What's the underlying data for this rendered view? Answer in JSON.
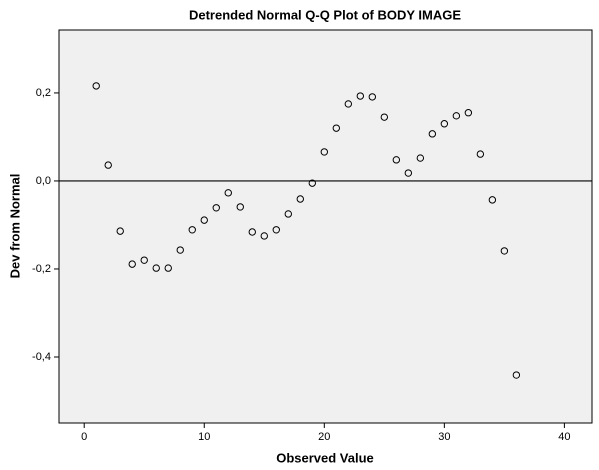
{
  "chart_data": {
    "type": "scatter",
    "title": "Detrended Normal Q-Q Plot of BODY IMAGE",
    "x_label": "Observed Value",
    "y_label": "Dev from Normal",
    "x": [
      1,
      2,
      3,
      4,
      5,
      6,
      7,
      8,
      9,
      10,
      11,
      12,
      13,
      14,
      15,
      16,
      17,
      18,
      19,
      20,
      21,
      22,
      23,
      24,
      25,
      26,
      27,
      28,
      29,
      30,
      31,
      32,
      33,
      34,
      35,
      36
    ],
    "values": [
      0.216,
      0.036,
      -0.114,
      -0.189,
      -0.18,
      -0.198,
      -0.198,
      -0.157,
      -0.111,
      -0.089,
      -0.061,
      -0.027,
      -0.059,
      -0.116,
      -0.125,
      -0.111,
      -0.075,
      -0.041,
      -0.005,
      0.066,
      0.12,
      0.175,
      0.193,
      0.191,
      0.145,
      0.048,
      0.018,
      0.052,
      0.107,
      0.13,
      0.148,
      0.155,
      0.061,
      -0.043,
      -0.159,
      -0.441
    ],
    "color": "#000000",
    "xlim": [
      -2.1,
      42.3
    ],
    "ylim": [
      -0.55,
      0.343
    ],
    "xticks": [
      0,
      10,
      20,
      30,
      40
    ],
    "yticks": [
      {
        "value": 0.2,
        "label": "0,2"
      },
      {
        "value": 0.0,
        "label": "0,0"
      },
      {
        "value": -0.2,
        "label": "-0,2"
      },
      {
        "value": -0.4,
        "label": "-0,4"
      }
    ],
    "hline": 0
  }
}
